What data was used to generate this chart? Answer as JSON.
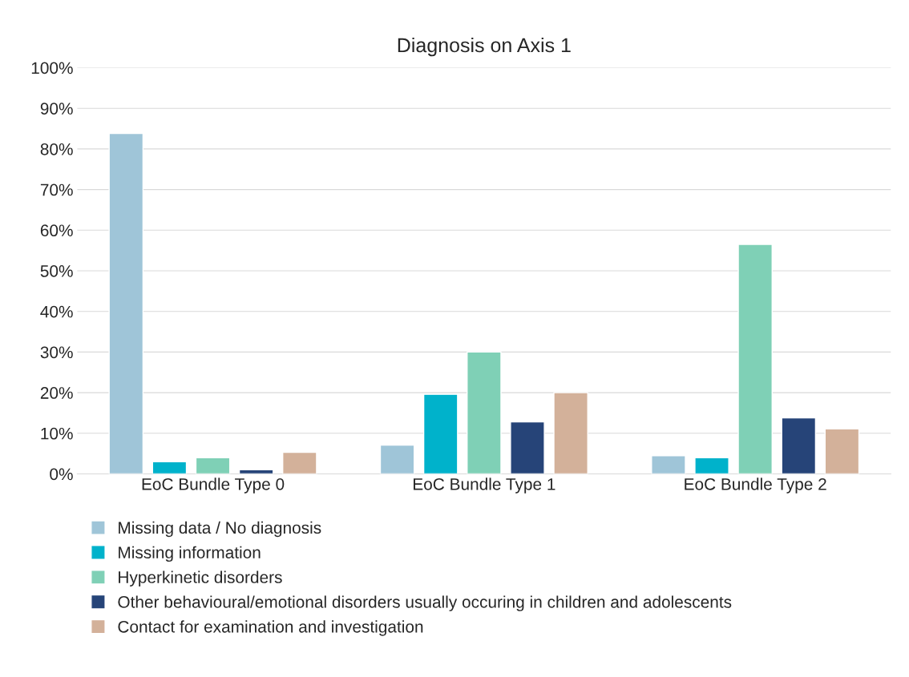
{
  "chart_data": {
    "type": "bar",
    "title": "Diagnosis on Axis 1",
    "categories": [
      "EoC Bundle Type 0",
      "EoC Bundle Type 1",
      "EoC Bundle Type 2"
    ],
    "series": [
      {
        "name": "Missing data / No diagnosis",
        "color": "#9fc5d8",
        "values": [
          83.8,
          7.1,
          4.5
        ]
      },
      {
        "name": "Missing information",
        "color": "#00b2cb",
        "values": [
          3.0,
          19.6,
          4.0
        ]
      },
      {
        "name": "Hyperkinetic disorders",
        "color": "#7fd0b6",
        "values": [
          4.0,
          30.0,
          56.5
        ]
      },
      {
        "name": "Other behavioural/emotional disorders usually occuring in children and adolescents",
        "color": "#264478",
        "values": [
          1.0,
          12.8,
          13.8
        ]
      },
      {
        "name": "Contact for examination and investigation",
        "color": "#d3b19a",
        "values": [
          5.3,
          20.0,
          11.1
        ]
      }
    ],
    "ylim": [
      0,
      100
    ],
    "yticks": [
      {
        "value": 0,
        "label": "0%"
      },
      {
        "value": 10,
        "label": "10%"
      },
      {
        "value": 20,
        "label": "20%"
      },
      {
        "value": 30,
        "label": "30%"
      },
      {
        "value": 40,
        "label": "40%"
      },
      {
        "value": 50,
        "label": "50%"
      },
      {
        "value": 60,
        "label": "60%"
      },
      {
        "value": 70,
        "label": "70%"
      },
      {
        "value": 80,
        "label": "80%"
      },
      {
        "value": 90,
        "label": "90%"
      },
      {
        "value": 100,
        "label": "100%"
      }
    ],
    "grid": "y",
    "legend": "bottom"
  }
}
